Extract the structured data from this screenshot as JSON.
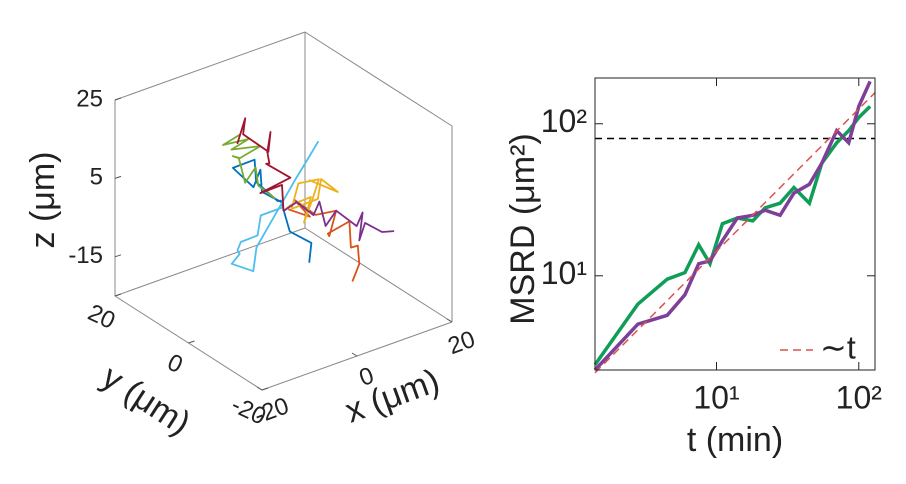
{
  "chart_data": [
    {
      "type": "line3d",
      "xlabel": "x (μm)",
      "ylabel": "y (μm)",
      "zlabel": "z (μm)",
      "xlim": [
        -20,
        20
      ],
      "ylim": [
        -20,
        20
      ],
      "zlim": [
        -25,
        25
      ],
      "xticks": [
        -20,
        0,
        20
      ],
      "yticks": [
        -20,
        0,
        20
      ],
      "zticks": [
        -15,
        5,
        25
      ],
      "series": [
        {
          "color": "#0072BD",
          "x": [
            0,
            -3,
            -1,
            -4,
            -6,
            -3,
            -5,
            -2,
            1,
            -1,
            2,
            0
          ],
          "y": [
            0,
            2,
            5,
            3,
            6,
            4,
            1,
            -1,
            2,
            -3,
            -5,
            -7
          ],
          "z": [
            2,
            5,
            8,
            6,
            10,
            12,
            9,
            4,
            1,
            -3,
            -6,
            -9
          ]
        },
        {
          "color": "#D95319",
          "x": [
            1,
            4,
            3,
            6,
            8,
            5,
            7,
            10,
            8,
            11,
            9,
            6
          ],
          "y": [
            0,
            -2,
            1,
            -1,
            -4,
            -6,
            -3,
            -5,
            -8,
            -6,
            -9,
            -11
          ],
          "z": [
            0,
            -2,
            1,
            -3,
            -1,
            -5,
            -7,
            -4,
            -8,
            -10,
            -12,
            -14
          ]
        },
        {
          "color": "#EDB120",
          "x": [
            0,
            3,
            5,
            2,
            6,
            9,
            7,
            4,
            8,
            11,
            13,
            10
          ],
          "y": [
            0,
            2,
            -1,
            -3,
            0,
            2,
            5,
            3,
            1,
            4,
            2,
            6
          ],
          "z": [
            0,
            -1,
            2,
            -2,
            0,
            3,
            1,
            -3,
            -1,
            1,
            -2,
            0
          ]
        },
        {
          "color": "#7E2F8E",
          "x": [
            0,
            2,
            4,
            6,
            5,
            8,
            10,
            12,
            9,
            11,
            13,
            14
          ],
          "y": [
            0,
            -1,
            -3,
            -2,
            -5,
            -4,
            -7,
            -6,
            -9,
            -8,
            -10,
            -12
          ],
          "z": [
            0,
            2,
            -1,
            1,
            -3,
            -1,
            -4,
            -2,
            -6,
            -3,
            -5,
            -4
          ]
        },
        {
          "color": "#77AC30",
          "x": [
            -1,
            -3,
            -2,
            -5,
            -4,
            -6,
            -3,
            -1,
            -4,
            -2,
            -5,
            -3
          ],
          "y": [
            1,
            3,
            5,
            4,
            7,
            6,
            8,
            5,
            9,
            7,
            10,
            8
          ],
          "z": [
            3,
            6,
            9,
            7,
            11,
            13,
            10,
            14,
            12,
            15,
            13,
            16
          ]
        },
        {
          "color": "#4DBEEE",
          "x": [
            0,
            -4,
            -7,
            -9,
            -12,
            -10,
            -14,
            -11,
            -8,
            4,
            8,
            12
          ],
          "y": [
            0,
            1,
            -2,
            0,
            -3,
            -1,
            -4,
            -6,
            -3,
            2,
            4,
            6
          ],
          "z": [
            1,
            0,
            -2,
            -4,
            -3,
            -6,
            -5,
            -7,
            -4,
            5,
            7,
            9
          ]
        },
        {
          "color": "#A2142F",
          "x": [
            0,
            2,
            -1,
            3,
            1,
            4,
            2,
            5,
            3,
            0,
            2,
            -2
          ],
          "y": [
            0,
            3,
            5,
            2,
            6,
            9,
            7,
            10,
            8,
            11,
            13,
            10
          ],
          "z": [
            0,
            4,
            2,
            6,
            8,
            5,
            10,
            12,
            9,
            13,
            15,
            12
          ]
        }
      ]
    },
    {
      "type": "line",
      "xlabel": "t (min)",
      "ylabel": "MSRD (μm²)",
      "xscale": "log",
      "yscale": "log",
      "xlim": [
        1.4,
        130
      ],
      "ylim": [
        2.4,
        200
      ],
      "xticks": [
        {
          "value": 10,
          "label": "10¹"
        },
        {
          "value": 100,
          "label": "10²"
        }
      ],
      "yticks": [
        {
          "value": 10,
          "label": "10¹"
        },
        {
          "value": 100,
          "label": "10²"
        }
      ],
      "hline": 80,
      "hline_color": "#000000",
      "legend": "lower right",
      "series": [
        {
          "color": "#0F9D58",
          "x": [
            1.4,
            2.8,
            4.5,
            6,
            7.5,
            9,
            11,
            14,
            18,
            22,
            28,
            35,
            45,
            55,
            70,
            85,
            100,
            120
          ],
          "values": [
            2.6,
            6.5,
            9.5,
            10.5,
            16,
            12,
            22,
            24,
            23,
            28,
            30,
            38,
            30,
            55,
            75,
            90,
            110,
            130
          ]
        },
        {
          "color": "#7E3F98",
          "x": [
            1.4,
            2.8,
            4.5,
            6,
            7.5,
            9,
            11,
            14,
            18,
            22,
            28,
            35,
            45,
            55,
            70,
            85,
            100,
            120
          ],
          "values": [
            2.4,
            4.8,
            5.5,
            7.5,
            12,
            12.5,
            17,
            24,
            25,
            27,
            25,
            35,
            40,
            55,
            90,
            75,
            130,
            190
          ]
        },
        {
          "name": "∼t",
          "color": "#D9534F",
          "dashed": true,
          "x": [
            1.4,
            130
          ],
          "values": [
            2.3,
            160
          ]
        }
      ]
    }
  ]
}
